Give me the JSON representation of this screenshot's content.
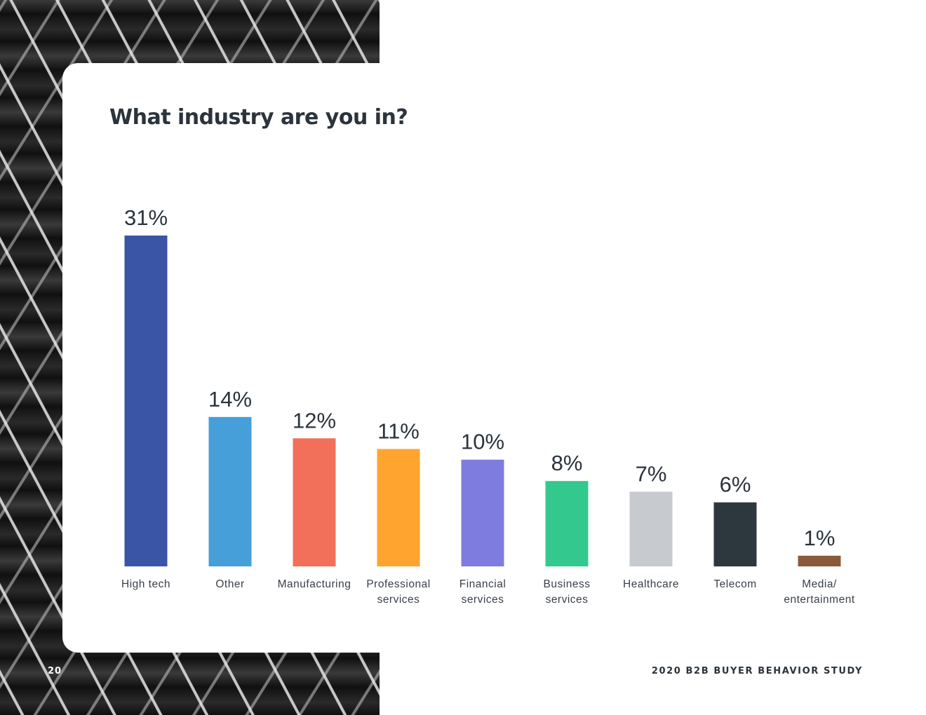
{
  "footer": {
    "page_number": "20",
    "publication": "2020 B2B BUYER BEHAVIOR STUDY"
  },
  "chart_data": {
    "type": "bar",
    "title": "What industry are you in?",
    "xlabel": "",
    "ylabel": "",
    "ylim": [
      0,
      31
    ],
    "grid": false,
    "unit": "%",
    "categories": [
      [
        "High tech"
      ],
      [
        "Other"
      ],
      [
        "Manufacturing"
      ],
      [
        "Professional",
        "services"
      ],
      [
        "Financial",
        "services"
      ],
      [
        "Business",
        "services"
      ],
      [
        "Healthcare"
      ],
      [
        "Telecom"
      ],
      [
        "Media/",
        "entertainment"
      ]
    ],
    "values": [
      31,
      14,
      12,
      11,
      10,
      8,
      7,
      6,
      1
    ],
    "value_labels": [
      "31%",
      "14%",
      "12%",
      "11%",
      "10%",
      "8%",
      "7%",
      "6%",
      "1%"
    ],
    "colors": [
      "#3a55a5",
      "#469fd9",
      "#f2705a",
      "#fea42f",
      "#7f7ce0",
      "#33c98e",
      "#c7cacf",
      "#2d373e",
      "#8a5a3b"
    ]
  }
}
